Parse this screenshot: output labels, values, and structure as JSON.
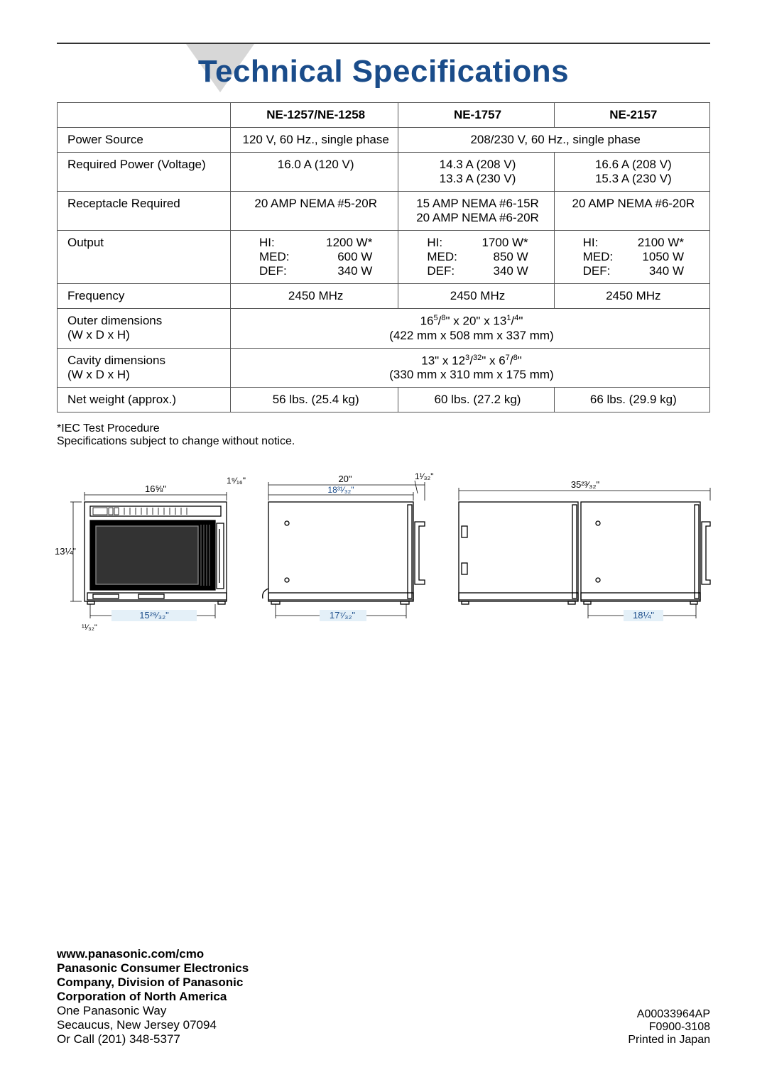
{
  "title": "Technical Specifications",
  "colors": {
    "title": "#1a4c8a",
    "triangle": "#d7d7d7",
    "rule": "#333333",
    "border": "#555555"
  },
  "table": {
    "headers": [
      "",
      "NE-1257/NE-1258",
      "NE-1757",
      "NE-2157"
    ],
    "rows": [
      {
        "label": "Power Source",
        "cells": [
          {
            "text": "120 V, 60 Hz., single phase",
            "align": "center"
          },
          {
            "text": "208/230 V, 60 Hz., single phase",
            "align": "center",
            "span": 2
          }
        ]
      },
      {
        "label": "Required Power (Voltage)",
        "cells": [
          {
            "text": "16.0 A (120 V)",
            "align": "center"
          },
          {
            "text": "14.3 A (208 V)\n13.3 A (230 V)",
            "align": "center"
          },
          {
            "text": "16.6 A (208 V)\n15.3 A (230 V)",
            "align": "center"
          }
        ]
      },
      {
        "label": "Receptacle Required",
        "cells": [
          {
            "text": "20 AMP NEMA #5-20R",
            "align": "center"
          },
          {
            "text": "15 AMP NEMA #6-15R\n20 AMP NEMA #6-20R",
            "align": "center"
          },
          {
            "text": "20 AMP NEMA #6-20R",
            "align": "center"
          }
        ]
      },
      {
        "label": "Output",
        "cells": [
          {
            "left": "HI:\nMED:\nDEF:",
            "right": "1200 W*\n600 W\n340 W"
          },
          {
            "left": "HI:\nMED:\nDEF:",
            "right": "1700 W*\n850 W\n340 W"
          },
          {
            "left": "HI:\nMED:\nDEF:",
            "right": "2100 W*\n1050 W\n340 W"
          }
        ]
      },
      {
        "label": "Frequency",
        "cells": [
          {
            "text": "2450 MHz",
            "align": "center"
          },
          {
            "text": "2450 MHz",
            "align": "center"
          },
          {
            "text": "2450 MHz",
            "align": "center"
          }
        ]
      },
      {
        "label": "Outer dimensions\n(W x D x H)",
        "cells": [
          {
            "html": "16<span class='sup'>5</span>/<span class='sup'>8</span>\" x 20\" x 13<span class='sup'>1</span>/<span class='sup'>4</span>\"<br>(422 mm x 508 mm x 337 mm)",
            "align": "center",
            "span": 3
          }
        ]
      },
      {
        "label": "Cavity dimensions\n(W x D x H)",
        "cells": [
          {
            "html": "13\" x 12<span class='sup'>3</span>/<span class='sup'>32</span>\" x 6<span class='sup'>7</span>/<span class='sup'>8</span>\"<br>(330 mm x 310 mm x 175 mm)",
            "align": "center",
            "span": 3
          }
        ]
      },
      {
        "label": "Net weight (approx.)",
        "cells": [
          {
            "text": "56 lbs. (25.4 kg)",
            "align": "center"
          },
          {
            "text": "60 lbs. (27.2 kg)",
            "align": "center"
          },
          {
            "text": "66 lbs. (29.9 kg)",
            "align": "center"
          }
        ]
      }
    ]
  },
  "notes": {
    "line1": "*IEC Test Procedure",
    "line2": "Specifications subject to change without notice."
  },
  "diagrams": {
    "front": {
      "dims": {
        "top": "16⅝\"",
        "left": "13¼\"",
        "bottom": "15²⁹⁄₃₂\"",
        "bl": "¹¹⁄₃₂\"",
        "tl": "1⁹⁄₁₆\""
      }
    },
    "side": {
      "dims": {
        "top_outer": "20\"",
        "top_inner": "18³¹⁄₃₂\"",
        "bottom": "17⁷⁄₃₂\"",
        "tr": "1¹⁄₃₂\""
      }
    },
    "double": {
      "dims": {
        "top": "35²³⁄₃₂\"",
        "bottom": "18¼\""
      }
    },
    "stroke": "#000000",
    "text_color": "#000000",
    "accent": "#1a4c8a"
  },
  "footer": {
    "url": "www.panasonic.com/cmo",
    "company_lines": [
      "Panasonic Consumer Electronics",
      "Company, Division of Panasonic",
      "Corporation of North America"
    ],
    "address_lines": [
      "One Panasonic Way",
      "Secaucus, New Jersey 07094",
      "Or Call (201) 348-5377"
    ],
    "right_lines": [
      "A00033964AP",
      "F0900-3108",
      "Printed in Japan"
    ]
  }
}
